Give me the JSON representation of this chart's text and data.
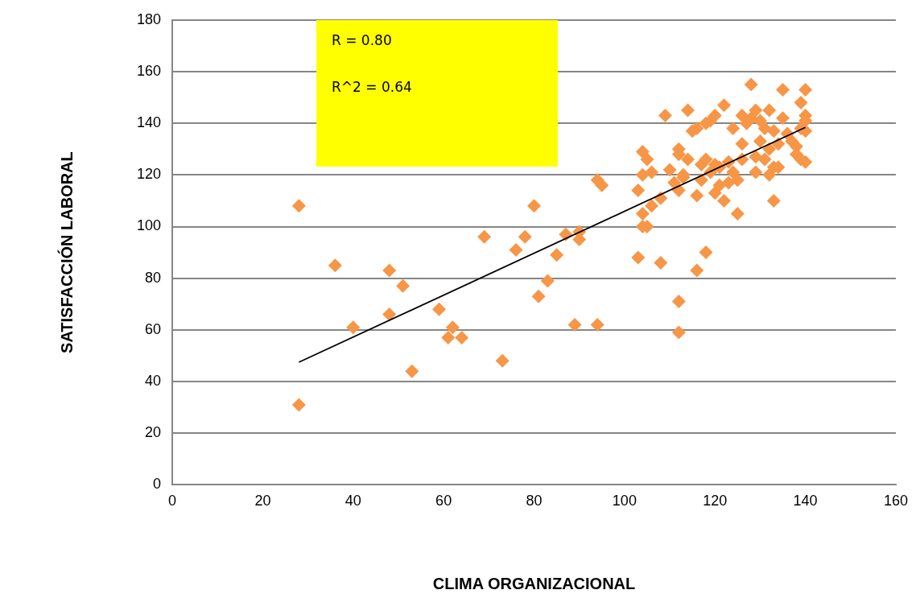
{
  "chart_data": {
    "type": "scatter",
    "xlabel": "CLIMA ORGANIZACIONAL",
    "ylabel": "SATISFACCIÓN LABORAL",
    "annotations": [
      "R = 0.80",
      "R^2 = 0.64"
    ],
    "xlim": [
      0,
      160
    ],
    "xticks": [
      0,
      20,
      40,
      60,
      80,
      100,
      120,
      140,
      160
    ],
    "ylim": [
      0,
      180
    ],
    "yticks": [
      0,
      20,
      40,
      60,
      80,
      100,
      120,
      140,
      160,
      180
    ],
    "grid": "y",
    "series": [
      {
        "type": "scatter",
        "color": "#f79646",
        "marker": "diamond",
        "x": [
          28,
          28,
          36,
          40,
          48,
          48,
          51,
          53,
          59,
          61,
          62,
          64,
          69,
          73,
          76,
          78,
          80,
          81,
          83,
          85,
          87,
          89,
          90,
          90,
          94,
          94,
          95,
          103,
          103,
          104,
          104,
          104,
          104,
          105,
          105,
          106,
          106,
          108,
          108,
          109,
          110,
          111,
          112,
          112,
          112,
          112,
          112,
          113,
          114,
          114,
          115,
          116,
          116,
          116,
          117,
          117,
          118,
          118,
          118,
          119,
          119,
          120,
          120,
          120,
          121,
          122,
          122,
          123,
          123,
          124,
          124,
          125,
          125,
          126,
          126,
          126,
          127,
          128,
          128,
          129,
          129,
          129,
          130,
          130,
          131,
          132,
          132,
          132,
          133,
          133,
          133,
          134,
          134,
          135,
          135,
          136,
          137,
          138,
          138,
          139,
          139,
          140,
          140,
          140,
          140,
          139,
          140,
          131,
          113,
          121
        ],
        "values": [
          108,
          31,
          85,
          61,
          83,
          66,
          77,
          44,
          68,
          57,
          61,
          57,
          96,
          48,
          91,
          96,
          108,
          73,
          79,
          89,
          97,
          62,
          98,
          95,
          62,
          118,
          116,
          114,
          88,
          105,
          100,
          120,
          129,
          126,
          100,
          121,
          108,
          86,
          111,
          143,
          122,
          117,
          71,
          59,
          128,
          130,
          114,
          119,
          145,
          126,
          137,
          112,
          83,
          138,
          124,
          118,
          140,
          90,
          126,
          121,
          141,
          124,
          143,
          113,
          116,
          110,
          147,
          125,
          117,
          138,
          121,
          105,
          118,
          143,
          132,
          126,
          140,
          155,
          142,
          145,
          121,
          127,
          133,
          141,
          138,
          145,
          120,
          130,
          110,
          137,
          123,
          123,
          132,
          153,
          142,
          136,
          133,
          128,
          131,
          148,
          138,
          153,
          143,
          137,
          125,
          126,
          141,
          126,
          120,
          123
        ]
      },
      {
        "type": "line",
        "color": "#000000",
        "marker": "none",
        "x": [
          28,
          140
        ],
        "values": [
          47.5,
          138.4
        ]
      }
    ]
  }
}
